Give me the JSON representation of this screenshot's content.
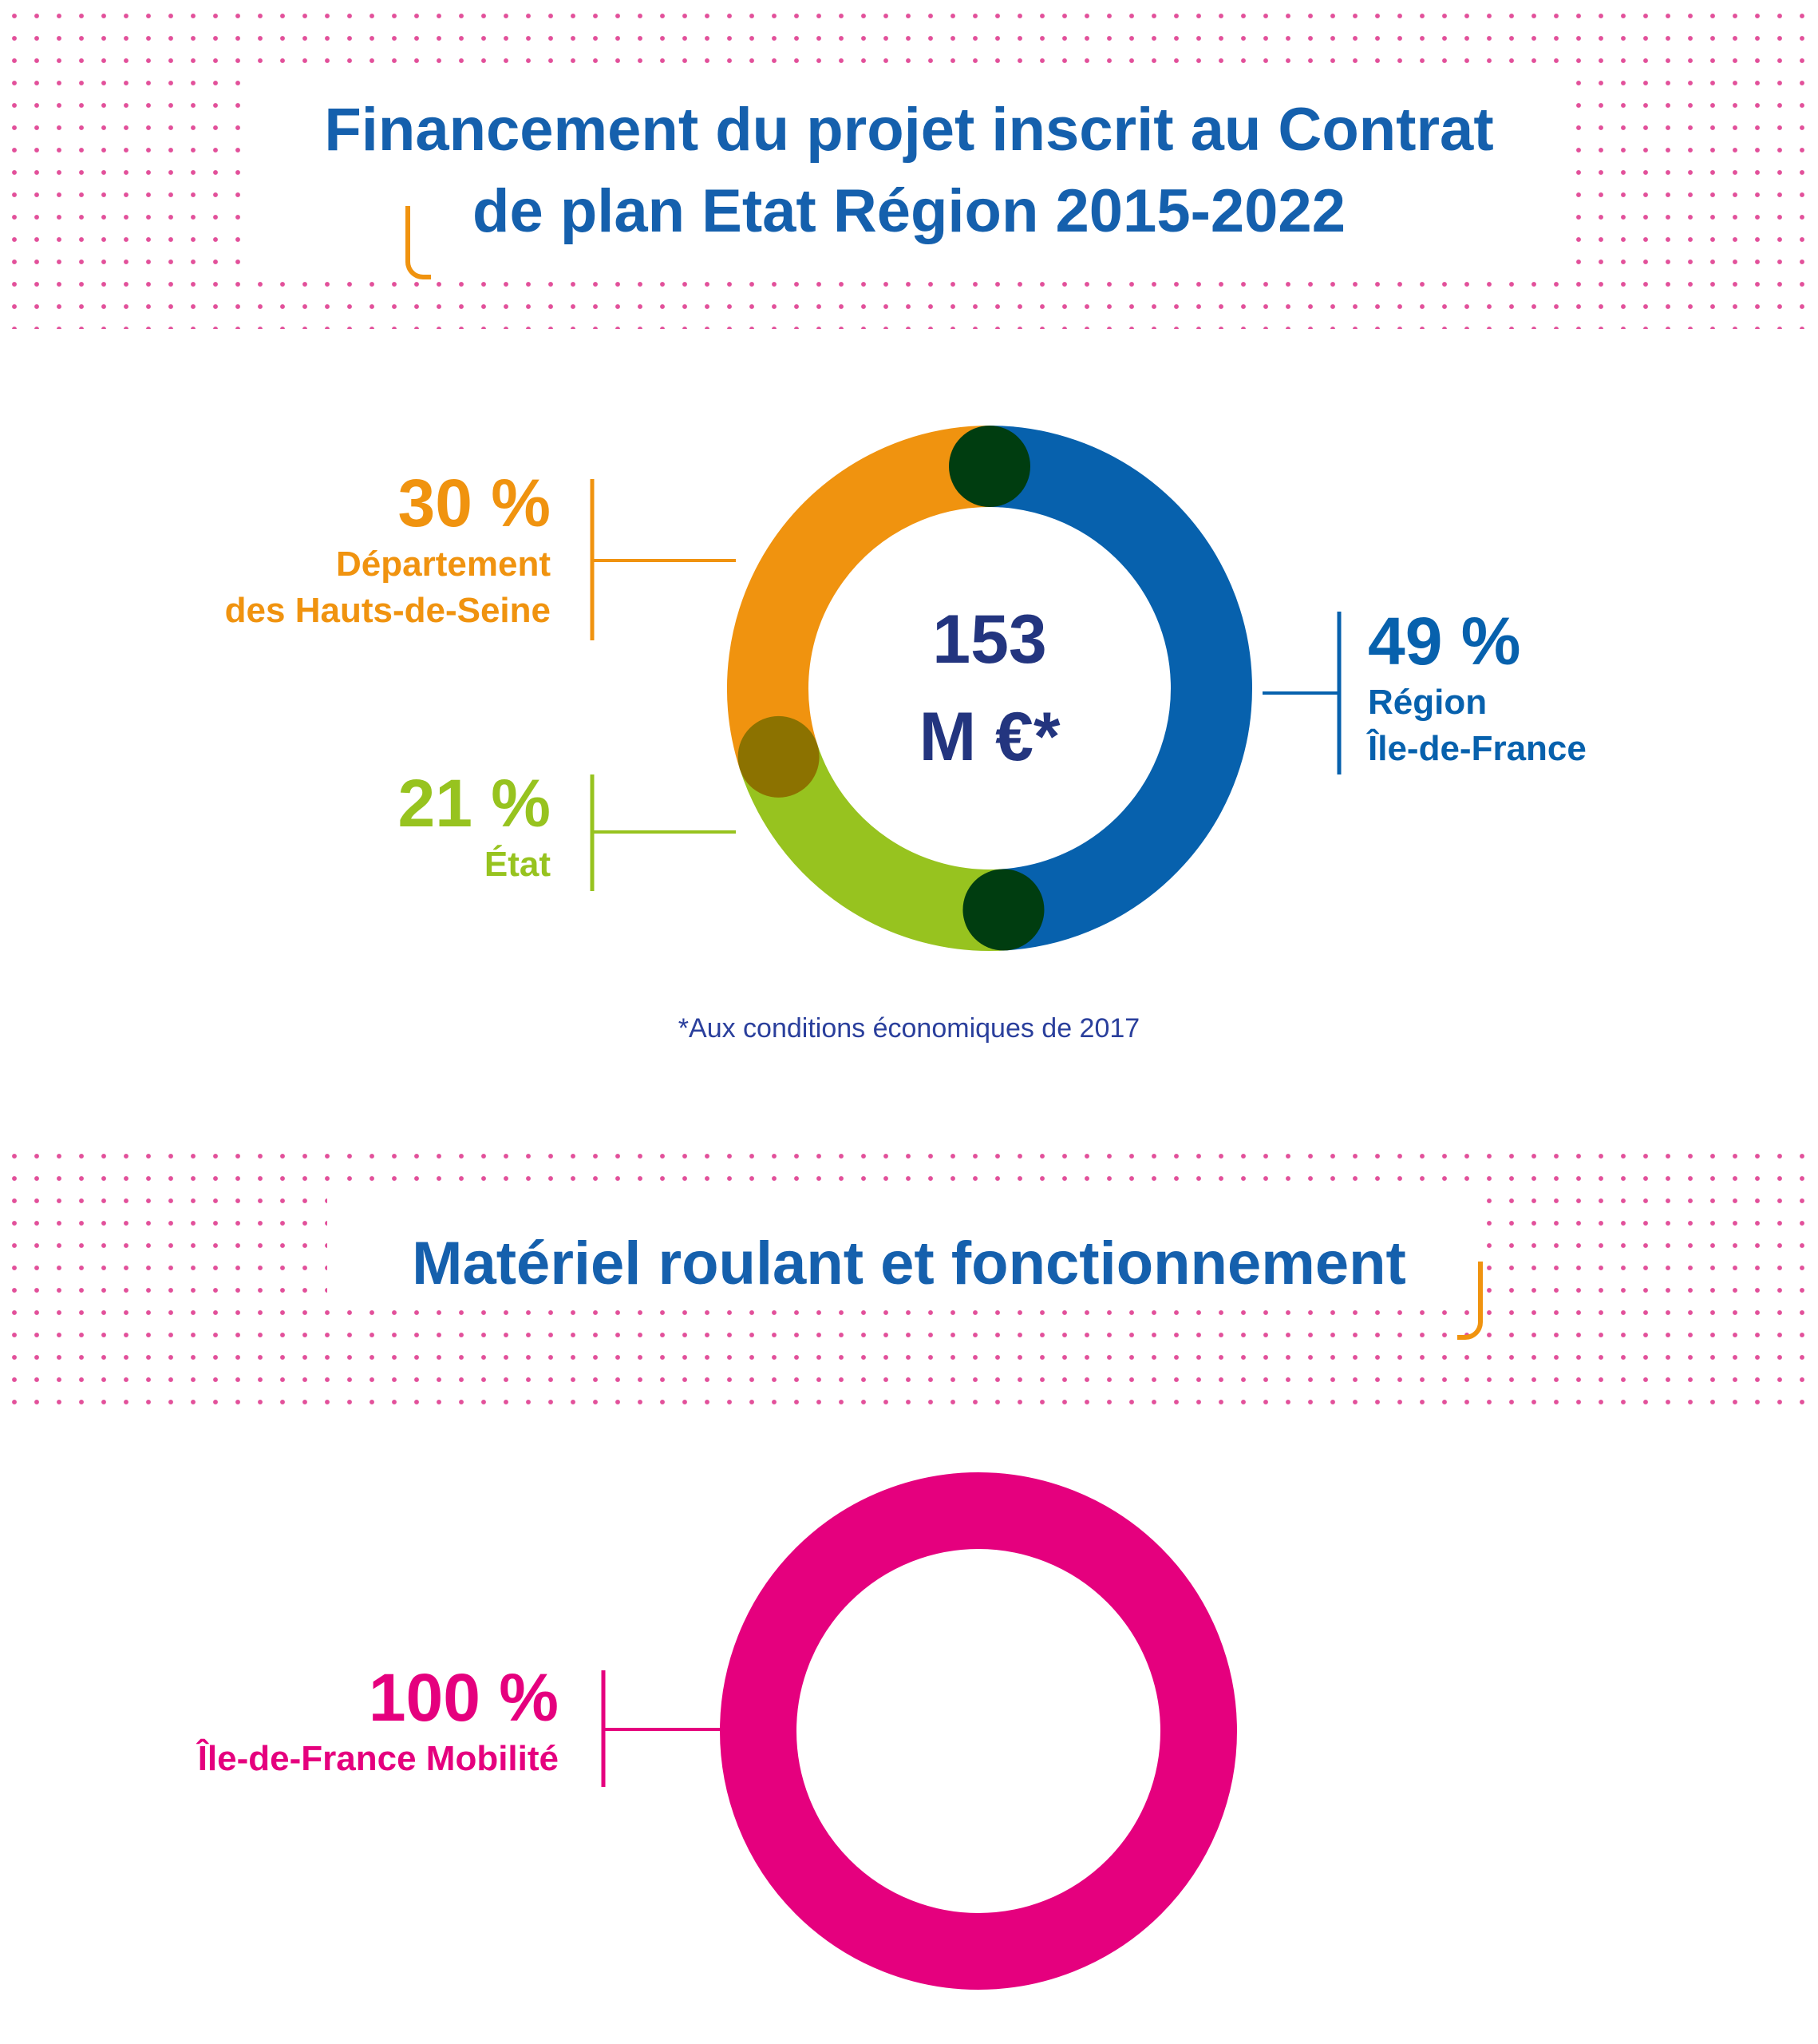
{
  "section1": {
    "title": "Financement du projet inscrit au Contrat de plan Etat Région 2015-2022",
    "title_lines": [
      "Financement du projet inscrit au Contrat",
      "de plan Etat Région 2015-2022"
    ],
    "center_total_line1": "153",
    "center_total_line2": "M €*",
    "footnote": "*Aux conditions économiques de 2017"
  },
  "section2": {
    "title": "Matériel roulant et fonctionnement"
  },
  "colors": {
    "blue": "#0761ad",
    "orange": "#f0930f",
    "green": "#97c31f",
    "pink": "#e5007e",
    "title_blue": "#1560ad",
    "center_blue": "#23357f",
    "dots_pink": "#e2509a"
  },
  "chart_data": [
    {
      "type": "pie",
      "variant": "donut",
      "center_label": "153 M €*",
      "series": [
        {
          "name": "Région Île-de-France",
          "label": "49 %",
          "value": 49,
          "color": "#0761ad"
        },
        {
          "name": "État",
          "label": "21 %",
          "value": 21,
          "color": "#97c31f"
        },
        {
          "name": "Département des Hauts-de-Seine",
          "label": "30 %",
          "value": 30,
          "color": "#f0930f"
        }
      ]
    },
    {
      "type": "pie",
      "variant": "donut",
      "series": [
        {
          "name": "Île-de-France Mobilité",
          "label": "100 %",
          "value": 100,
          "color": "#e5007e"
        }
      ]
    }
  ],
  "labels": {
    "orange_pct": "30 %",
    "orange_name_line1": "Département",
    "orange_name_line2": "des Hauts-de-Seine",
    "green_pct": "21 %",
    "green_name": "État",
    "blue_pct": "49 %",
    "blue_name_line1": "Région",
    "blue_name_line2": "Île-de-France",
    "pink_pct": "100 %",
    "pink_name": "Île-de-France Mobilité"
  }
}
